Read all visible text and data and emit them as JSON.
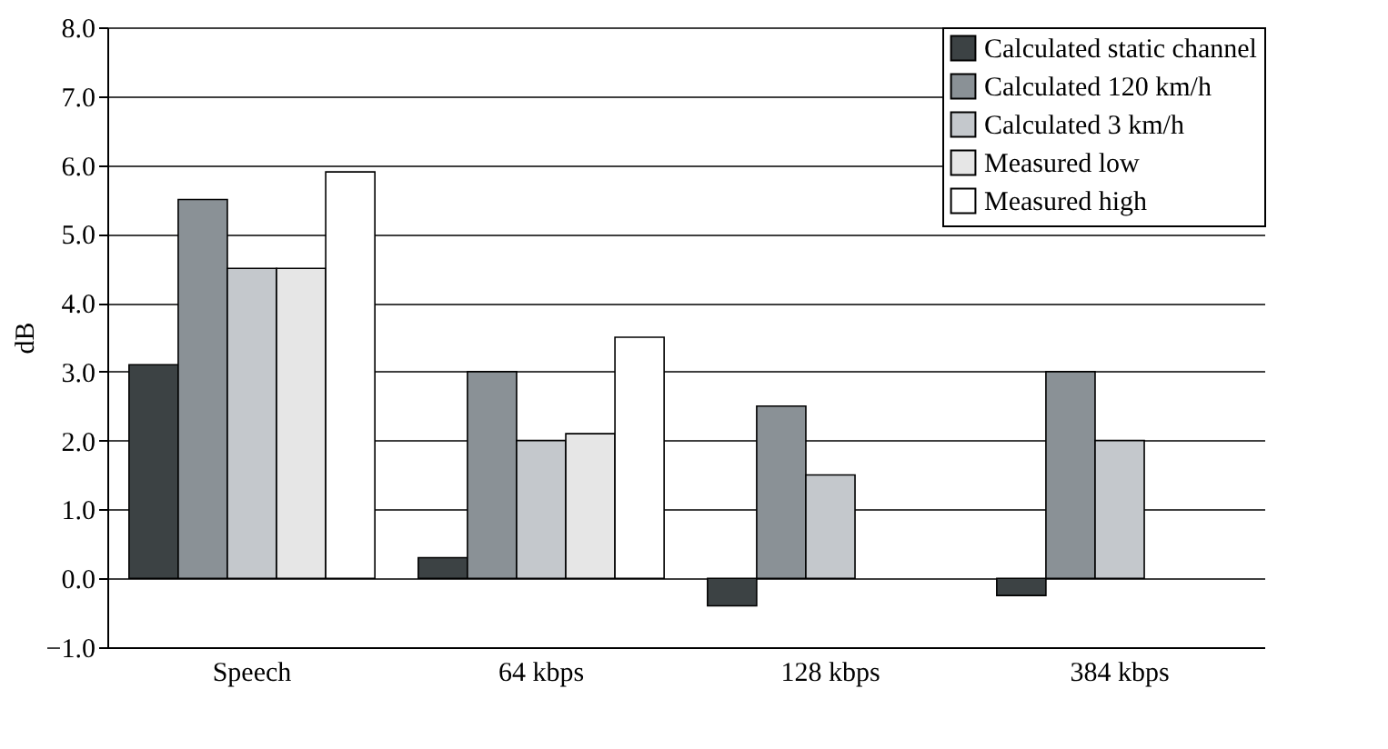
{
  "chart_data": {
    "type": "bar",
    "ylabel": "dB",
    "categories": [
      "Speech",
      "64 kbps",
      "128 kbps",
      "384 kbps"
    ],
    "series": [
      {
        "name": "Calculated static channel",
        "color": "#3c4244",
        "values": [
          3.1,
          0.3,
          -0.4,
          -0.25
        ]
      },
      {
        "name": "Calculated 120 km/h",
        "color": "#8a9196",
        "values": [
          5.5,
          3.0,
          2.5,
          3.0
        ]
      },
      {
        "name": "Calculated 3 km/h",
        "color": "#c4c8cc",
        "values": [
          4.5,
          2.0,
          1.5,
          2.0
        ]
      },
      {
        "name": "Measured low",
        "color": "#e6e6e6",
        "values": [
          4.5,
          2.1,
          null,
          null
        ]
      },
      {
        "name": "Measured high",
        "color": "#ffffff",
        "values": [
          5.9,
          3.5,
          null,
          null
        ]
      }
    ],
    "ylim": [
      -1,
      8
    ],
    "yticks": [
      {
        "value": -1,
        "label": "−1.0"
      },
      {
        "value": 0,
        "label": "0.0"
      },
      {
        "value": 1,
        "label": "1.0"
      },
      {
        "value": 2,
        "label": "2.0"
      },
      {
        "value": 3,
        "label": "3.0"
      },
      {
        "value": 4,
        "label": "4.0"
      },
      {
        "value": 5,
        "label": "5.0"
      },
      {
        "value": 6,
        "label": "6.0"
      },
      {
        "value": 7,
        "label": "7.0"
      },
      {
        "value": 8,
        "label": "8.0"
      }
    ],
    "grid": "y",
    "legend": "top right"
  }
}
